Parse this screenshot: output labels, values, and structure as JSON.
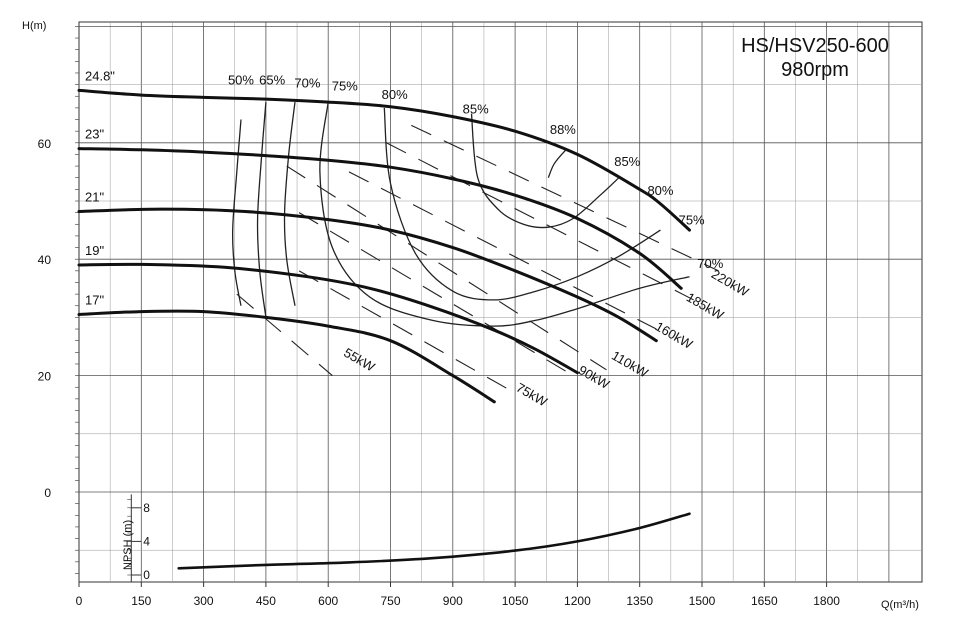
{
  "chart_data": {
    "type": "line",
    "title": "HS/HSV250-600",
    "subtitle": "980rpm",
    "xlabel": "Q(m³/h)",
    "ylabel": "H(m)",
    "npsh_label": "NPSH (m)",
    "xlim": [
      0,
      2100
    ],
    "ylim": [
      -15,
      80
    ],
    "npsh_ylim": [
      0,
      10
    ],
    "x_ticks": [
      "0",
      "150",
      "300",
      "450",
      "600",
      "750",
      "900",
      "1050",
      "1200",
      "1350",
      "1500",
      "1650",
      "1800"
    ],
    "y_ticks": [
      "0",
      "20",
      "40",
      "60"
    ],
    "npsh_ticks": [
      "0",
      "4",
      "8"
    ],
    "grid": true,
    "head_curves": [
      {
        "name": "24.8\"",
        "x": [
          0,
          150,
          300,
          450,
          600,
          750,
          900,
          1050,
          1200,
          1350,
          1400,
          1470
        ],
        "y": [
          69,
          68.2,
          67.8,
          67.5,
          67,
          66.2,
          64.5,
          62,
          58,
          52,
          49.5,
          45
        ]
      },
      {
        "name": "23\"",
        "x": [
          0,
          150,
          300,
          450,
          600,
          750,
          900,
          1050,
          1200,
          1350,
          1450
        ],
        "y": [
          59,
          58.8,
          58.4,
          57.8,
          57,
          55.8,
          53.8,
          51,
          47,
          41,
          35
        ]
      },
      {
        "name": "21\"",
        "x": [
          0,
          200,
          400,
          600,
          750,
          900,
          1050,
          1200,
          1300,
          1390
        ],
        "y": [
          48.2,
          48.6,
          48.2,
          46.8,
          45,
          42,
          38,
          33.5,
          30,
          26
        ]
      },
      {
        "name": "19\"",
        "x": [
          0,
          150,
          350,
          550,
          700,
          850,
          1000,
          1100,
          1200
        ],
        "y": [
          39,
          39.1,
          38.6,
          37,
          35,
          31.8,
          27.8,
          24.5,
          20.5
        ]
      },
      {
        "name": "17\"",
        "x": [
          0,
          150,
          300,
          450,
          600,
          750,
          900,
          1000
        ],
        "y": [
          30.5,
          31,
          31,
          30,
          28.5,
          26,
          20,
          15.5
        ]
      }
    ],
    "efficiency_curves": [
      {
        "label": "50%",
        "x": [
          390,
          380,
          370,
          375,
          390
        ],
        "y": [
          64,
          55,
          45,
          38,
          32
        ]
      },
      {
        "label": "65%",
        "x": [
          450,
          440,
          430,
          435,
          450
        ],
        "y": [
          67,
          58,
          47,
          38,
          30
        ]
      },
      {
        "label": "70%",
        "x": [
          520,
          505,
          495,
          500,
          520
        ],
        "y": [
          67,
          58,
          48,
          40,
          32
        ]
      },
      {
        "label": "75%",
        "x": [
          600,
          580,
          610,
          700,
          850,
          1000,
          1100,
          1200,
          1350,
          1470
        ],
        "y": [
          67,
          55,
          42,
          33.5,
          29.5,
          28.5,
          29.5,
          31.5,
          35,
          37
        ]
      },
      {
        "label": "80%",
        "x": [
          735,
          750,
          810,
          900,
          1000,
          1100,
          1200,
          1300,
          1400
        ],
        "y": [
          66,
          53,
          41,
          34.5,
          33,
          34.5,
          37,
          40.5,
          45
        ]
      },
      {
        "label": "85%",
        "x": [
          945,
          960,
          1010,
          1070,
          1130,
          1190,
          1255,
          1300
        ],
        "y": [
          65,
          54,
          48.5,
          46,
          45.5,
          47,
          51,
          54
        ]
      },
      {
        "label": "88%",
        "x": [
          1130,
          1145,
          1175
        ],
        "y": [
          54,
          56.5,
          59
        ]
      }
    ],
    "efficiency_labels": [
      {
        "text": "50%",
        "x": 390,
        "y": 70
      },
      {
        "text": "65%",
        "x": 465,
        "y": 70
      },
      {
        "text": "70%",
        "x": 550,
        "y": 69.5
      },
      {
        "text": "75%",
        "x": 640,
        "y": 69
      },
      {
        "text": "80%",
        "x": 760,
        "y": 67.5
      },
      {
        "text": "85%",
        "x": 955,
        "y": 65
      },
      {
        "text": "88%",
        "x": 1165,
        "y": 61.5
      },
      {
        "text": "85%",
        "x": 1320,
        "y": 56
      },
      {
        "text": "80%",
        "x": 1400,
        "y": 51
      },
      {
        "text": "75%",
        "x": 1475,
        "y": 46
      },
      {
        "text": "70%",
        "x": 1520,
        "y": 38.5
      }
    ],
    "power_lines": [
      {
        "label": "55kW",
        "x": [
          380,
          610
        ],
        "y": [
          34,
          20
        ]
      },
      {
        "label": "75kW",
        "x": [
          530,
          1050
        ],
        "y": [
          38,
          17
        ]
      },
      {
        "label": "90kW",
        "x": [
          530,
          1190
        ],
        "y": [
          48,
          20
        ]
      },
      {
        "label": "110kW",
        "x": [
          500,
          1270
        ],
        "y": [
          56,
          21
        ]
      },
      {
        "label": "160kW",
        "x": [
          650,
          1390
        ],
        "y": [
          55,
          28
        ]
      },
      {
        "label": "185kW",
        "x": [
          740,
          1480
        ],
        "y": [
          60,
          33
        ]
      },
      {
        "label": "220kW",
        "x": [
          800,
          1540
        ],
        "y": [
          63,
          38
        ]
      }
    ],
    "power_labels": [
      {
        "text": "55kW",
        "x": 635,
        "y": 23.5
      },
      {
        "text": "75kW",
        "x": 1050,
        "y": 17.5
      },
      {
        "text": "90kW",
        "x": 1200,
        "y": 20.5
      },
      {
        "text": "110kW",
        "x": 1280,
        "y": 23
      },
      {
        "text": "160kW",
        "x": 1385,
        "y": 28
      },
      {
        "text": "185kW",
        "x": 1460,
        "y": 33
      },
      {
        "text": "220kW",
        "x": 1520,
        "y": 37
      }
    ],
    "npsh_curve": {
      "x": [
        240,
        450,
        650,
        850,
        1050,
        1200,
        1350,
        1470
      ],
      "y": [
        0.8,
        1.2,
        1.5,
        2,
        2.9,
        4,
        5.6,
        7.3
      ]
    }
  }
}
